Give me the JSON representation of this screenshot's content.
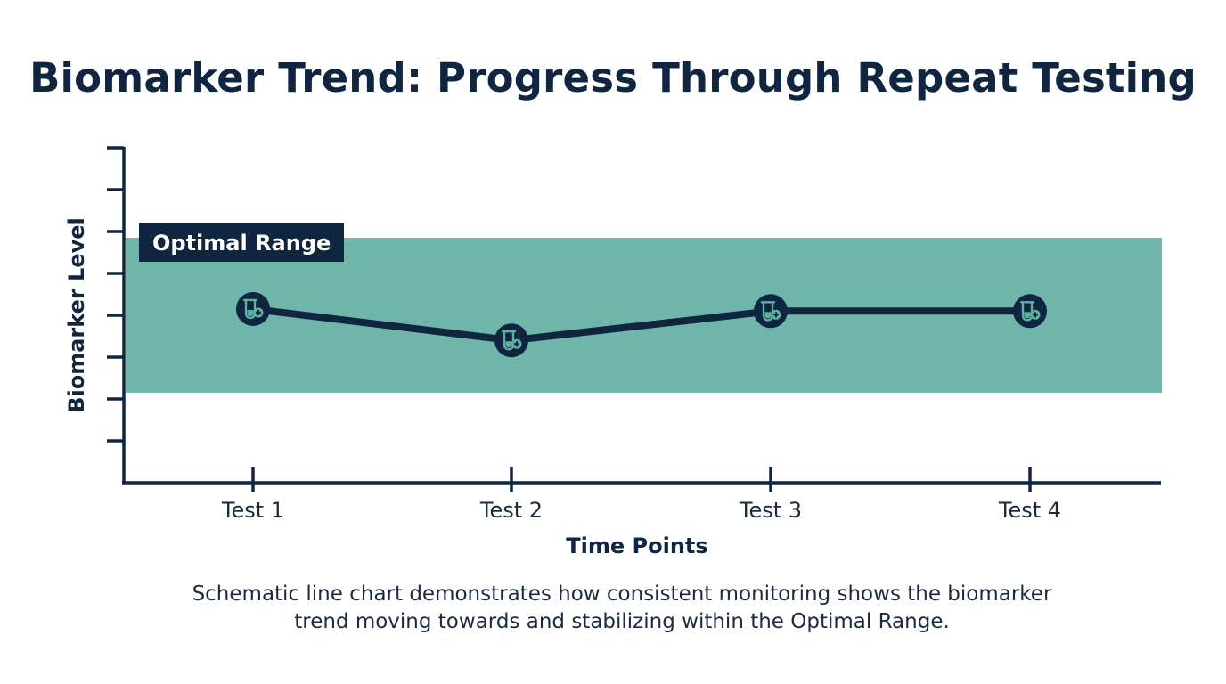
{
  "title": "Biomarker Trend: Progress Through Repeat Testing",
  "caption_line1": "Schematic line chart demonstrates how consistent monitoring shows the biomarker",
  "caption_line2": "trend moving towards and stabilizing within the Optimal Range.",
  "colors": {
    "ink": "#0f2540",
    "band": "#6fb5aa",
    "marker_icon": "#5fb0a2"
  },
  "chart_data": {
    "type": "line",
    "categories": [
      "Test 1",
      "Test 2",
      "Test 3",
      "Test 4"
    ],
    "series": [
      {
        "values": [
          4.15,
          3.4,
          4.1,
          4.1
        ]
      }
    ],
    "xlabel": "Time Points",
    "ylabel": "Biomarker Level",
    "ylim": [
      0,
      8
    ],
    "y_ticks": [
      1,
      2,
      3,
      4,
      5,
      6,
      7,
      8
    ],
    "y_tick_labels_shown": false,
    "band": {
      "label": "Optimal Range",
      "low": 2.15,
      "high": 5.85
    },
    "marker_icon": "test-tube-plus-icon",
    "grid": false,
    "legend": "none"
  }
}
